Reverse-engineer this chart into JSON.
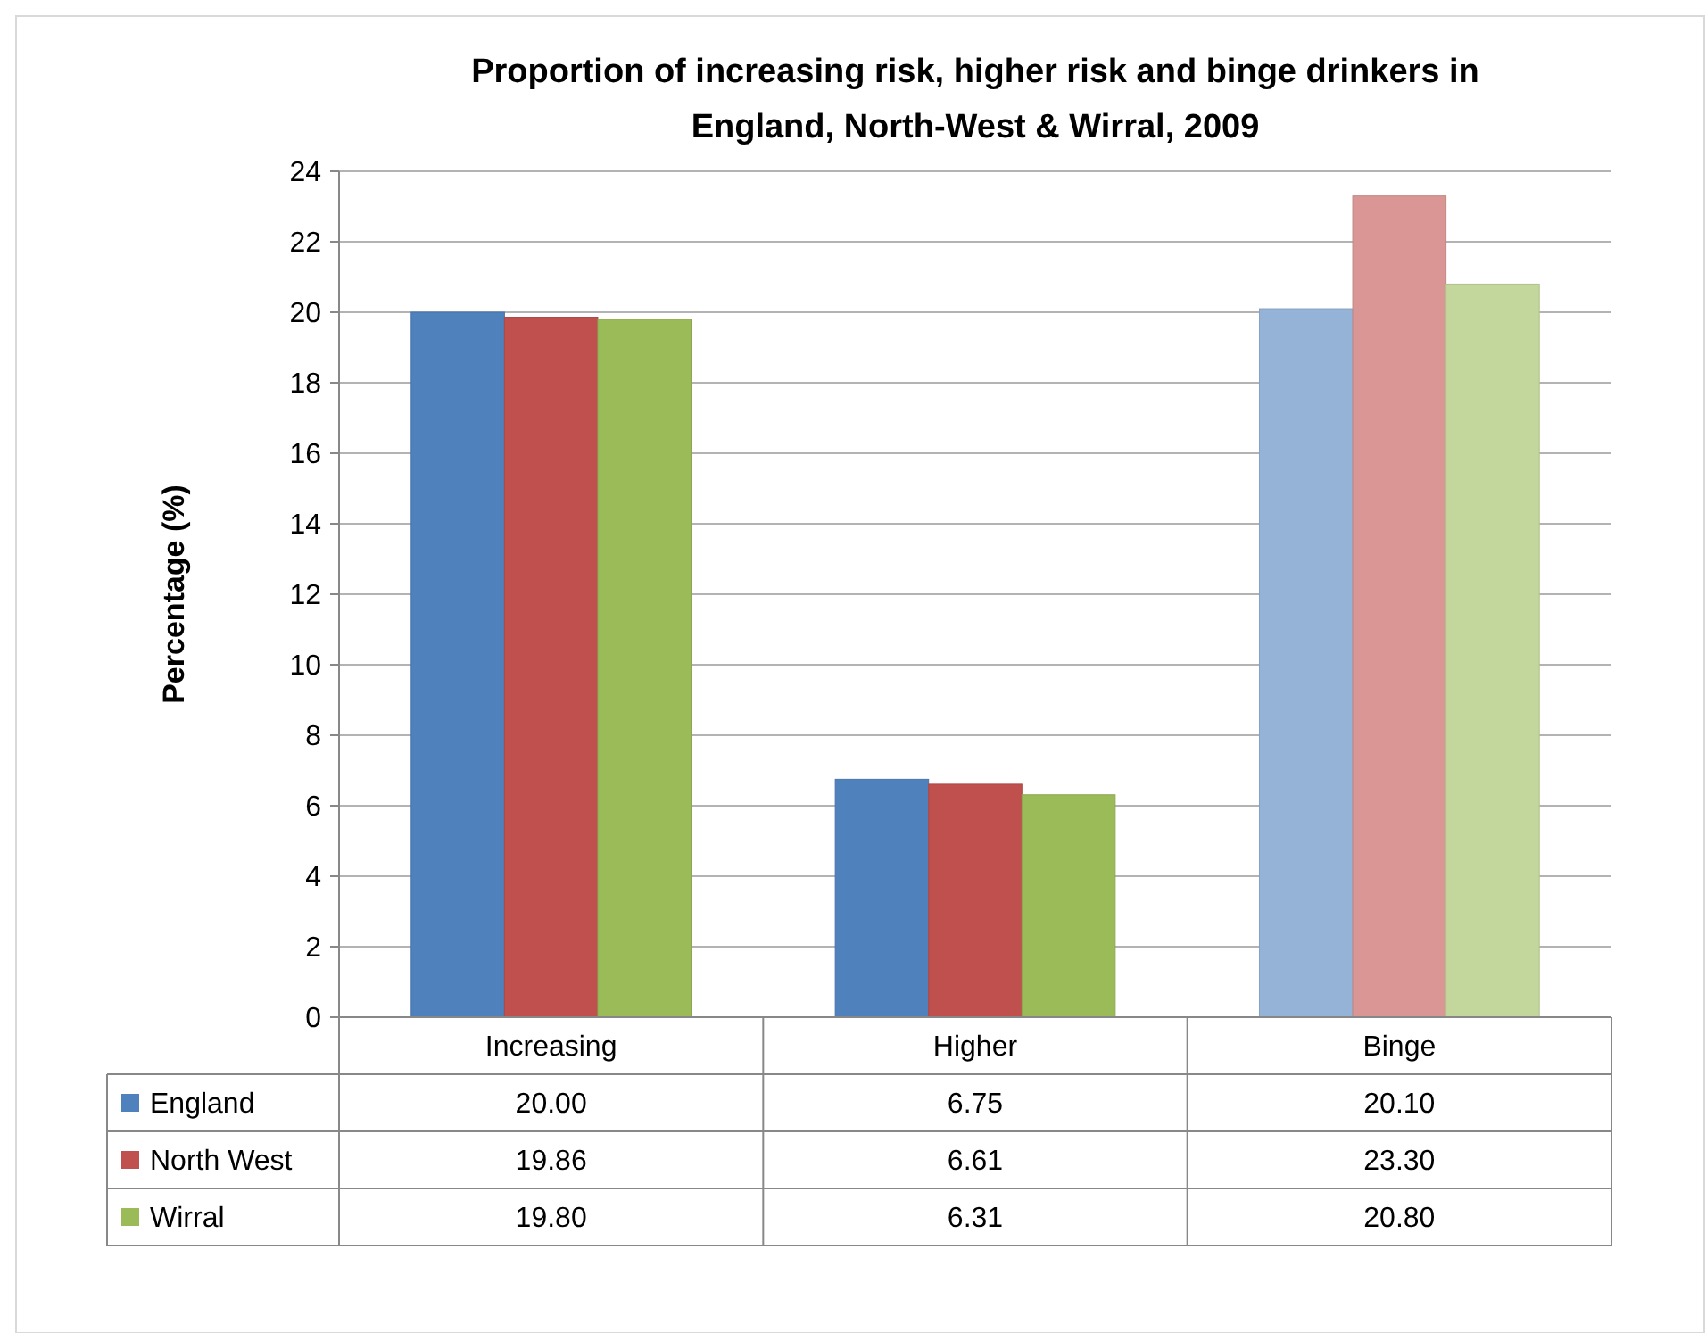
{
  "chart_data": {
    "type": "bar",
    "title": "Proportion of increasing risk, higher risk and binge drinkers in England, North-West & Wirral, 2009",
    "ylabel": "Percentage (%)",
    "categories": [
      "Increasing",
      "Higher",
      "Binge"
    ],
    "series": [
      {
        "name": "England",
        "color": "#4f81bd",
        "colors": [
          "#4f81bd",
          "#4f81bd",
          "#95b3d7"
        ],
        "values": [
          20.0,
          6.75,
          20.1
        ],
        "value_labels": [
          "20.00",
          "6.75",
          "20.10"
        ]
      },
      {
        "name": "North West",
        "color": "#c0504d",
        "colors": [
          "#c0504d",
          "#c0504d",
          "#d99694"
        ],
        "values": [
          19.86,
          6.61,
          23.3
        ],
        "value_labels": [
          "19.86",
          "6.61",
          "23.30"
        ]
      },
      {
        "name": "Wirral",
        "color": "#9bbb59",
        "colors": [
          "#9bbb59",
          "#9bbb59",
          "#c3d69b"
        ],
        "values": [
          19.8,
          6.31,
          20.8
        ],
        "value_labels": [
          "19.80",
          "6.31",
          "20.80"
        ]
      }
    ],
    "ylim": [
      0,
      24
    ],
    "yticks": [
      0,
      2,
      4,
      6,
      8,
      10,
      12,
      14,
      16,
      18,
      20,
      22,
      24
    ],
    "grid": "y",
    "legend": "bottom"
  }
}
